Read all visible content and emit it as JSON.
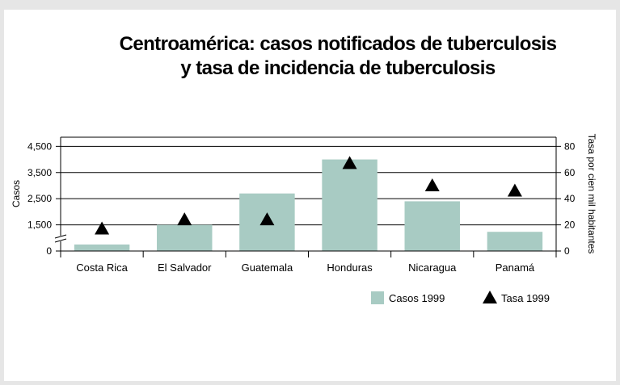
{
  "chart_data": {
    "type": "bar-marker",
    "title": [
      "Centroamérica: casos notificados de tuberculosis",
      "y tasa de incidencia de tuberculosis"
    ],
    "ylabel": "Casos",
    "y2label": "Tasa por cien mil habitantes",
    "categories": [
      "Costa Rica",
      "El Salvador",
      "Guatemala",
      "Honduras",
      "Nicaragua",
      "Panamá"
    ],
    "series": [
      {
        "name": "Casos 1999",
        "color": "#a8cbc3",
        "kind": "bar",
        "values": [
          375,
          1500,
          2700,
          4000,
          2400,
          1100
        ]
      },
      {
        "name": "Tasa 1999",
        "color": "#000000",
        "kind": "triangle",
        "axis": "y2",
        "values": [
          17,
          24,
          24,
          67,
          50,
          46
        ]
      }
    ],
    "ylim": [
      0,
      4850
    ],
    "yticks": [
      0,
      {
        "value": 1500,
        "label": "1,500"
      },
      {
        "value": 2500,
        "label": "2,500"
      },
      {
        "value": 3500,
        "label": "3,500"
      },
      {
        "value": 4500,
        "label": "4,500"
      }
    ],
    "axis_break": true,
    "y2lim": [
      0,
      87
    ],
    "y2ticks": [
      0,
      20,
      40,
      60,
      80
    ],
    "grid": true,
    "legend": "bottom-right"
  }
}
